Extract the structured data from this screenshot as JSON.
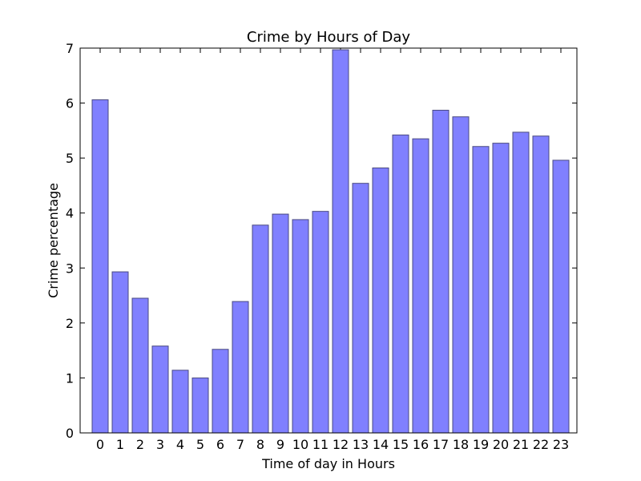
{
  "chart_data": {
    "type": "bar",
    "title": "Crime by Hours of Day",
    "xlabel": "Time of day in Hours",
    "ylabel": "Crime percentage",
    "categories": [
      "0",
      "1",
      "2",
      "3",
      "4",
      "5",
      "6",
      "7",
      "8",
      "9",
      "10",
      "11",
      "12",
      "13",
      "14",
      "15",
      "16",
      "17",
      "18",
      "19",
      "20",
      "21",
      "22",
      "23"
    ],
    "values": [
      6.06,
      2.93,
      2.45,
      1.58,
      1.14,
      1.0,
      1.52,
      2.39,
      3.78,
      3.98,
      3.88,
      4.03,
      6.97,
      4.54,
      4.82,
      5.42,
      5.35,
      5.87,
      5.75,
      5.21,
      5.27,
      5.47,
      5.4,
      4.96
    ],
    "ylim": [
      0,
      7
    ],
    "yticks": [
      "0",
      "1",
      "2",
      "3",
      "4",
      "5",
      "6",
      "7"
    ],
    "grid": false,
    "colors": {
      "bar_fill": "#8080ff",
      "bar_edge": "#4a4a80",
      "axes": "#000000",
      "background": "#ffffff"
    }
  }
}
